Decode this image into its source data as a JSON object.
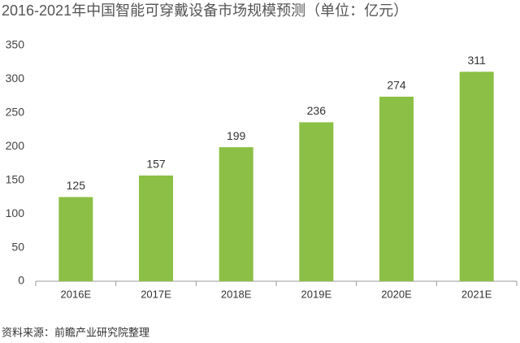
{
  "chart_data": {
    "type": "bar",
    "title": "2016-2021年中国智能可穿戴设备市场规模预测（单位：亿元）",
    "source": "资料来源：前瞻产业研究院整理",
    "categories": [
      "2016E",
      "2017E",
      "2018E",
      "2019E",
      "2020E",
      "2021E"
    ],
    "values": [
      125,
      157,
      199,
      236,
      274,
      311
    ],
    "color": "#8cbf45",
    "ylim": [
      0,
      350
    ],
    "yticks": [
      0,
      50,
      100,
      150,
      200,
      250,
      300,
      350
    ],
    "grid": false
  }
}
